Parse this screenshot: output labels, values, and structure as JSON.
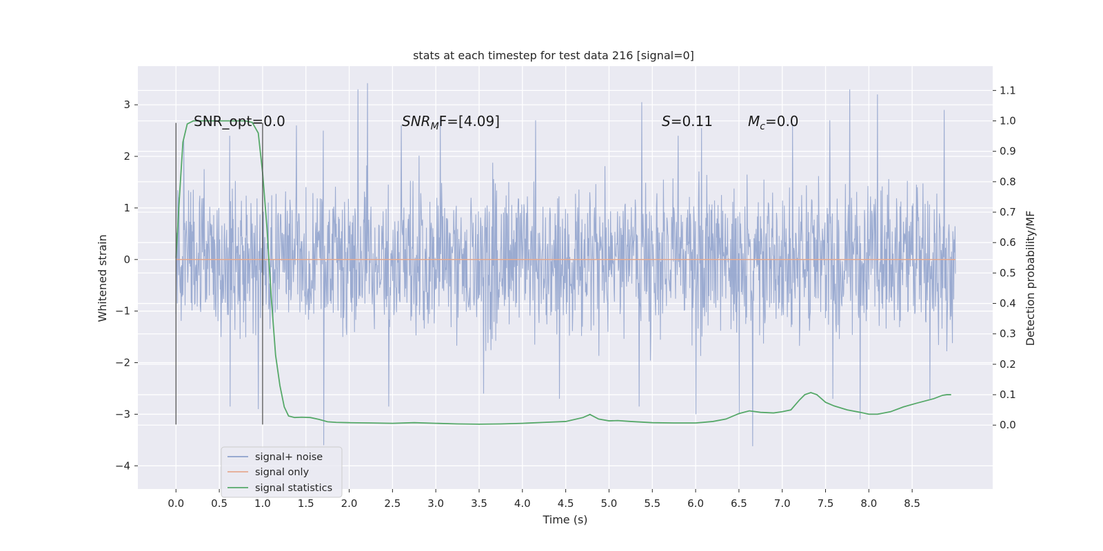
{
  "chart_data": {
    "type": "line",
    "title": "stats at each timestep for test data 216 [signal=0]",
    "xlabel": "Time (s)",
    "ylabel": "Whitened strain",
    "y2label": "Detection probability/MF",
    "xlim": [
      -0.44,
      9.43
    ],
    "ylim": [
      -4.45,
      3.75
    ],
    "y2lim": [
      -0.21,
      1.18
    ],
    "xticks": [
      0.0,
      0.5,
      1.0,
      1.5,
      2.0,
      2.5,
      3.0,
      3.5,
      4.0,
      4.5,
      5.0,
      5.5,
      6.0,
      6.5,
      7.0,
      7.5,
      8.0,
      8.5
    ],
    "xtick_labels": [
      "0.0",
      "0.5",
      "1.0",
      "1.5",
      "2.0",
      "2.5",
      "3.0",
      "3.5",
      "4.0",
      "4.5",
      "5.0",
      "5.5",
      "6.0",
      "6.5",
      "7.0",
      "7.5",
      "8.0",
      "8.5"
    ],
    "yticks": [
      3,
      2,
      1,
      0,
      -1,
      -2,
      -3,
      -4
    ],
    "ytick_labels": [
      "3",
      "2",
      "1",
      "0",
      "−1",
      "−2",
      "−3",
      "−4"
    ],
    "y2ticks": [
      1.1,
      1.0,
      0.9,
      0.8,
      0.7,
      0.6,
      0.5,
      0.4,
      0.3,
      0.2,
      0.1,
      0.0
    ],
    "y2tick_labels": [
      "1.1",
      "1.0",
      "0.9",
      "0.8",
      "0.7",
      "0.6",
      "0.5",
      "0.4",
      "0.3",
      "0.2",
      "0.1",
      "0.0"
    ],
    "grid": true,
    "legend_position": "lower-left",
    "annotations": {
      "snr_opt": "SNR_opt=0.0",
      "snr_mf_main": "SNR",
      "snr_mf_sub": "M",
      "snr_mf_tail": "F=[4.09]",
      "s_var": "S",
      "s_val": "=0.11",
      "mc_var": "M",
      "mc_sub": "c",
      "mc_val": "=0.0"
    },
    "vertical_lines_x": [
      0.0,
      1.0
    ],
    "noise_envelope": {
      "t_range": [
        0.0,
        9.0
      ],
      "typical_abs": 1.3,
      "max": 3.42,
      "min": -3.65
    },
    "series": [
      {
        "name": "signal+ noise",
        "color": "#8da0cb",
        "x_range": [
          0.0,
          9.0
        ],
        "peaks": [
          {
            "x": 0.09,
            "y": 2.3
          },
          {
            "x": 0.62,
            "y": 2.4
          },
          {
            "x": 1.39,
            "y": 2.6
          },
          {
            "x": 1.7,
            "y": 2.5
          },
          {
            "x": 2.1,
            "y": 3.3
          },
          {
            "x": 2.21,
            "y": 3.42
          },
          {
            "x": 2.6,
            "y": 2.6
          },
          {
            "x": 3.05,
            "y": 2.75
          },
          {
            "x": 4.15,
            "y": 2.7
          },
          {
            "x": 5.38,
            "y": 3.05
          },
          {
            "x": 5.8,
            "y": 2.4
          },
          {
            "x": 6.07,
            "y": 2.55
          },
          {
            "x": 7.12,
            "y": 2.6
          },
          {
            "x": 7.55,
            "y": 2.7
          },
          {
            "x": 7.78,
            "y": 3.3
          },
          {
            "x": 8.1,
            "y": 3.2
          },
          {
            "x": 8.87,
            "y": 2.9
          }
        ],
        "troughs": [
          {
            "x": 0.62,
            "y": -2.85
          },
          {
            "x": 0.95,
            "y": -2.9
          },
          {
            "x": 1.7,
            "y": -3.6
          },
          {
            "x": 2.45,
            "y": -2.85
          },
          {
            "x": 3.55,
            "y": -2.6
          },
          {
            "x": 4.42,
            "y": -2.7
          },
          {
            "x": 5.35,
            "y": -2.85
          },
          {
            "x": 6.0,
            "y": -3.0
          },
          {
            "x": 6.5,
            "y": -3.0
          },
          {
            "x": 6.66,
            "y": -3.62
          },
          {
            "x": 7.58,
            "y": -2.7
          },
          {
            "x": 7.9,
            "y": -3.1
          },
          {
            "x": 8.7,
            "y": -2.7
          }
        ]
      },
      {
        "name": "signal only",
        "color": "#e5a98f",
        "x": [
          0.0,
          9.0
        ],
        "y": [
          0.0,
          0.0
        ]
      },
      {
        "name": "signal statistics",
        "color": "#55a868",
        "axis": "right",
        "x": [
          0.0,
          0.04,
          0.08,
          0.13,
          0.2,
          0.3,
          0.4,
          0.5,
          0.6,
          0.7,
          0.8,
          0.88,
          0.95,
          1.0,
          1.05,
          1.1,
          1.15,
          1.2,
          1.25,
          1.3,
          1.37,
          1.45,
          1.55,
          1.65,
          1.75,
          1.85,
          2.0,
          2.25,
          2.5,
          2.75,
          3.0,
          3.25,
          3.5,
          3.75,
          4.0,
          4.25,
          4.5,
          4.7,
          4.78,
          4.88,
          5.0,
          5.1,
          5.25,
          5.5,
          5.75,
          6.0,
          6.2,
          6.35,
          6.5,
          6.62,
          6.75,
          6.9,
          7.0,
          7.1,
          7.2,
          7.26,
          7.33,
          7.4,
          7.5,
          7.6,
          7.75,
          7.9,
          8.0,
          8.1,
          8.25,
          8.4,
          8.55,
          8.75,
          8.85,
          8.9,
          8.95
        ],
        "y": [
          0.55,
          0.75,
          0.93,
          0.99,
          1.0,
          1.0,
          1.0,
          1.0,
          1.0,
          1.0,
          1.0,
          0.995,
          0.96,
          0.83,
          0.65,
          0.42,
          0.23,
          0.13,
          0.06,
          0.03,
          0.025,
          0.026,
          0.025,
          0.019,
          0.011,
          0.009,
          0.008,
          0.007,
          0.006,
          0.008,
          0.006,
          0.004,
          0.003,
          0.004,
          0.006,
          0.009,
          0.012,
          0.025,
          0.035,
          0.02,
          0.014,
          0.015,
          0.012,
          0.008,
          0.007,
          0.007,
          0.012,
          0.02,
          0.038,
          0.047,
          0.042,
          0.04,
          0.044,
          0.05,
          0.083,
          0.1,
          0.107,
          0.1,
          0.075,
          0.063,
          0.05,
          0.042,
          0.036,
          0.036,
          0.044,
          0.06,
          0.072,
          0.087,
          0.098,
          0.1,
          0.1
        ]
      }
    ]
  }
}
